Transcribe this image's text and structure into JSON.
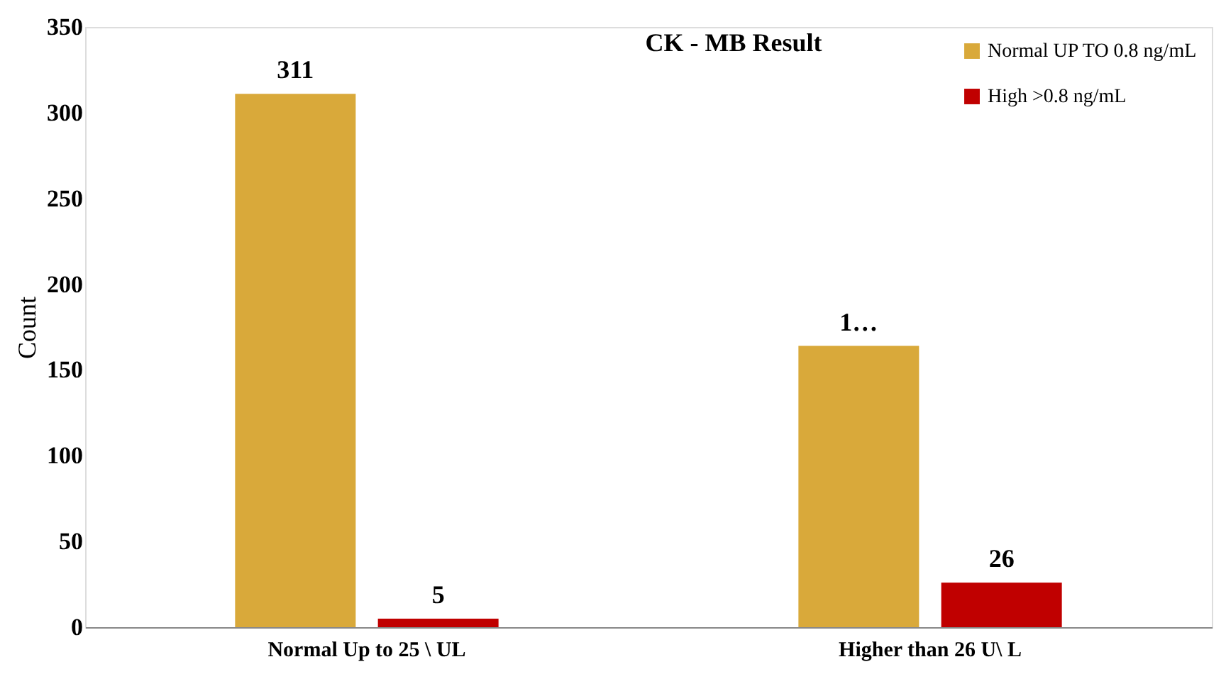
{
  "chart_data": {
    "type": "bar",
    "title": "CK - MB Result",
    "ylabel": "Count",
    "categories": [
      "Normal Up to 25 \\ UL",
      "Higher than 26 U\\ L"
    ],
    "series": [
      {
        "name": "Normal UP TO 0.8 ng/mL",
        "color": "#d9a93a",
        "values": [
          311,
          164
        ],
        "value_labels": [
          "311",
          "1…"
        ]
      },
      {
        "name": "High >0.8  ng/mL",
        "color": "#c00000",
        "values": [
          5,
          26
        ],
        "value_labels": [
          "5",
          "26"
        ]
      }
    ],
    "ylim": [
      0,
      350
    ],
    "yticks": [
      0,
      50,
      100,
      150,
      200,
      250,
      300,
      350
    ],
    "legend": "top right"
  }
}
